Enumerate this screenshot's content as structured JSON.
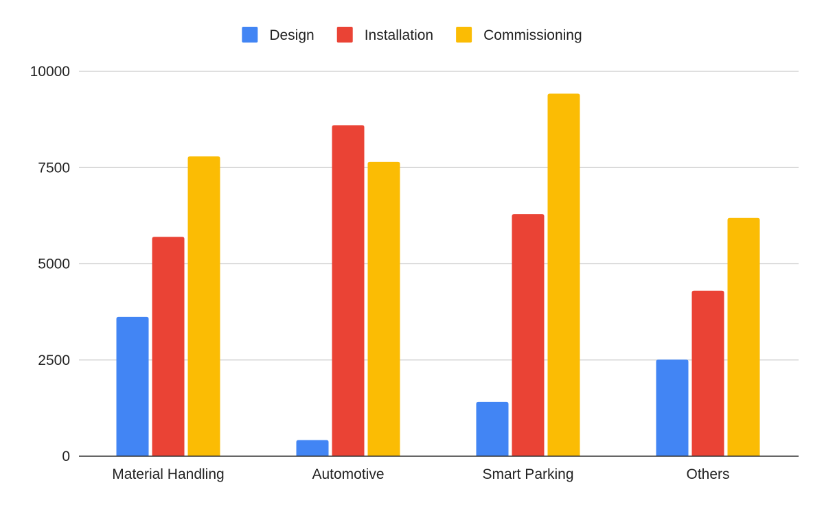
{
  "chart_data": {
    "type": "bar",
    "title": "",
    "xlabel": "",
    "ylabel": "",
    "categories": [
      "Material Handling",
      "Automotive",
      "Smart Parking",
      "Others"
    ],
    "series": [
      {
        "name": "Design",
        "color": "#4285f4",
        "values": [
          3620,
          420,
          1410,
          2510
        ]
      },
      {
        "name": "Installation",
        "color": "#ea4335",
        "values": [
          5700,
          8600,
          6290,
          4300
        ]
      },
      {
        "name": "Commissioning",
        "color": "#fbbc04",
        "values": [
          7790,
          7650,
          9420,
          6190
        ]
      }
    ],
    "ylim": [
      0,
      10000
    ],
    "yticks": [
      "0",
      "2500",
      "5000",
      "7500",
      "10000"
    ],
    "grid": true,
    "legend_position": "top-center"
  }
}
